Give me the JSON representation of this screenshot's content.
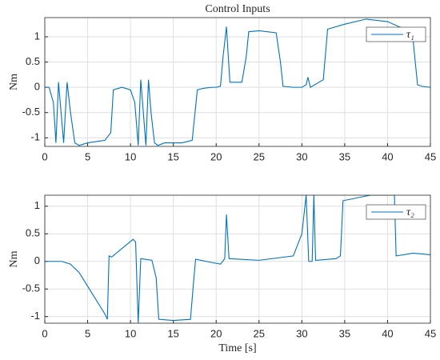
{
  "chart_data": [
    {
      "type": "line",
      "title": "Control Inputs",
      "ylabel": "Nm",
      "xlim": [
        0,
        45
      ],
      "xticks": [
        0,
        5,
        10,
        15,
        20,
        25,
        30,
        35,
        40,
        45
      ],
      "ylim": [
        -1.17,
        1.38
      ],
      "yticks": [
        -1,
        -0.5,
        0,
        0.5,
        1
      ],
      "grid": true,
      "legend": "upper right",
      "x": [
        0,
        0.5,
        1,
        1.3,
        1.6,
        1.9,
        2.2,
        2.6,
        3,
        3.5,
        4,
        5,
        7,
        7.7,
        8,
        9,
        10,
        10.5,
        10.9,
        11.2,
        11.5,
        11.8,
        12.1,
        12.4,
        12.8,
        13.2,
        14,
        16,
        17.2,
        17.8,
        18.5,
        19.5,
        20,
        20.5,
        20.8,
        21.2,
        21.6,
        22,
        23,
        23.5,
        23.8,
        25,
        27,
        27.5,
        27.8,
        29,
        30,
        30.5,
        30.7,
        31,
        32,
        32.5,
        33,
        35,
        37.5,
        40,
        42,
        43,
        43.5,
        44,
        45
      ],
      "series": [
        {
          "name": "τ₁",
          "color": "#0072bd",
          "values": [
            0,
            0,
            -0.3,
            -1.1,
            0.1,
            -0.5,
            -1.1,
            0.1,
            -0.5,
            -1.1,
            -1.15,
            -1.1,
            -1.05,
            -0.9,
            -0.05,
            0,
            -0.05,
            -0.3,
            -1.15,
            0.15,
            -0.5,
            -1.15,
            0.15,
            -0.5,
            -1.1,
            -1.15,
            -1.1,
            -1.1,
            -1.05,
            -0.05,
            -0.02,
            0,
            0,
            0.02,
            0.6,
            1.2,
            0.1,
            0.1,
            0.1,
            0.6,
            1.1,
            1.12,
            1.08,
            0.5,
            0.02,
            0,
            0,
            0.05,
            0.2,
            0,
            0.1,
            0.15,
            1.15,
            1.25,
            1.35,
            1.3,
            1.15,
            0.9,
            0.05,
            0.02,
            0
          ]
        }
      ]
    },
    {
      "type": "line",
      "ylabel": "Nm",
      "xlabel": "Time [s]",
      "xlim": [
        0,
        45
      ],
      "xticks": [
        0,
        5,
        10,
        15,
        20,
        25,
        30,
        35,
        40,
        45
      ],
      "ylim": [
        -1.12,
        1.2
      ],
      "yticks": [
        -1,
        -0.5,
        0,
        0.5,
        1
      ],
      "grid": true,
      "legend": "upper right",
      "x": [
        0,
        2,
        3,
        4,
        5,
        6,
        7,
        7.3,
        7.5,
        7.8,
        10.3,
        10.6,
        10.9,
        11.2,
        12.5,
        13,
        13.3,
        15,
        17,
        17.4,
        17.6,
        19.5,
        20.5,
        21,
        21.2,
        21.5,
        25,
        29,
        30,
        30.5,
        30.8,
        31.2,
        31.4,
        31.6,
        34,
        34.5,
        34.8,
        38,
        40.8,
        41,
        43,
        45
      ],
      "series": [
        {
          "name": "τ₂",
          "color": "#0072bd",
          "values": [
            0,
            0,
            -0.05,
            -0.2,
            -0.45,
            -0.7,
            -0.95,
            -1.05,
            0.1,
            0.08,
            0.4,
            0.35,
            -1.12,
            0.05,
            0.02,
            -0.3,
            -1.05,
            -1.07,
            -1.05,
            -0.3,
            0.04,
            -0.02,
            -0.05,
            0.05,
            0.85,
            0.05,
            0.02,
            0.1,
            0.5,
            1.2,
            0,
            0,
            1.2,
            0.02,
            0.05,
            0.1,
            1.1,
            1.2,
            1.2,
            0.1,
            0.15,
            0.12
          ]
        }
      ]
    }
  ]
}
